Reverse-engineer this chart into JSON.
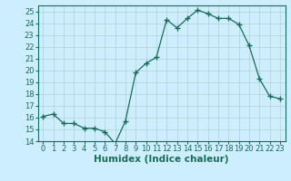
{
  "x": [
    0,
    1,
    2,
    3,
    4,
    5,
    6,
    7,
    8,
    9,
    10,
    11,
    12,
    13,
    14,
    15,
    16,
    17,
    18,
    19,
    20,
    21,
    22,
    23
  ],
  "y": [
    16.1,
    16.3,
    15.5,
    15.5,
    15.1,
    15.1,
    14.8,
    13.8,
    15.7,
    19.8,
    20.6,
    21.1,
    24.3,
    23.6,
    24.4,
    25.1,
    24.8,
    24.4,
    24.4,
    23.9,
    22.1,
    19.3,
    17.8,
    17.6
  ],
  "xlim": [
    -0.5,
    23.5
  ],
  "ylim": [
    14,
    25.5
  ],
  "yticks": [
    14,
    15,
    16,
    17,
    18,
    19,
    20,
    21,
    22,
    23,
    24,
    25
  ],
  "xticks": [
    0,
    1,
    2,
    3,
    4,
    5,
    6,
    7,
    8,
    9,
    10,
    11,
    12,
    13,
    14,
    15,
    16,
    17,
    18,
    19,
    20,
    21,
    22,
    23
  ],
  "xlabel": "Humidex (Indice chaleur)",
  "line_color": "#1a6b5a",
  "marker": "+",
  "marker_size": 4,
  "bg_color": "#cceeff",
  "grid_color": "#b0d0d0",
  "tick_label_fontsize": 6,
  "xlabel_fontsize": 7.5
}
